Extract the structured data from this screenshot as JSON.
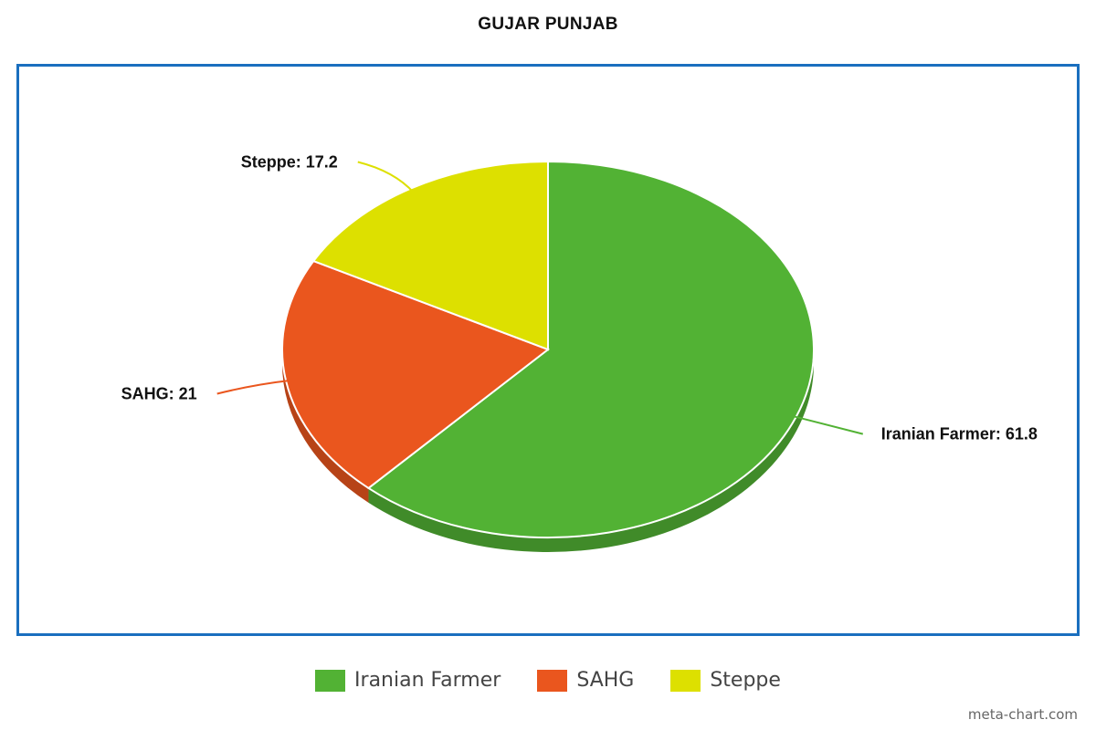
{
  "chart_data": {
    "type": "pie",
    "title": "GUJAR PUNJAB",
    "categories": [
      "Iranian Farmer",
      "SAHG",
      "Steppe"
    ],
    "values": [
      61.8,
      21,
      17.2
    ],
    "colors": [
      "#52b234",
      "#ea561e",
      "#dde000"
    ],
    "data_labels": [
      "Iranian Farmer: 61.8",
      "SAHG: 21",
      "Steppe: 17.2"
    ],
    "legend_position": "bottom",
    "style": "3d-tilted"
  },
  "legend": {
    "items": [
      {
        "label": "Iranian Farmer",
        "color": "#52b234"
      },
      {
        "label": "SAHG",
        "color": "#ea561e"
      },
      {
        "label": "Steppe",
        "color": "#dde000"
      }
    ]
  },
  "watermark": "meta-chart.com"
}
